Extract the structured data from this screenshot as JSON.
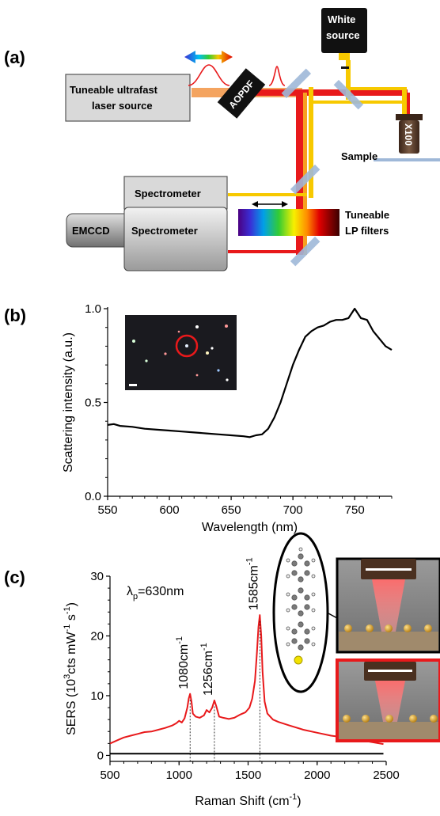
{
  "panel_a": {
    "label": "(a)",
    "laser_line1": "Tuneable ultrafast",
    "laser_line2": "laser source",
    "aopdf": "AOPDF",
    "white_line1": "White",
    "white_line2": "source",
    "objective": "X100",
    "sample": "Sample",
    "spectrometer_top": "Spectrometer",
    "spectrometer_bottom": "Spectrometer",
    "emccd": "EMCCD",
    "filters_line1": "Tuneable",
    "filters_line2": "LP filters"
  },
  "panel_b": {
    "label": "(b)"
  },
  "panel_c": {
    "label": "(c)",
    "lambda_symbol": "λ",
    "lambda_sub": "p",
    "lambda_value": "=630nm",
    "peaks": [
      {
        "text": "1080cm",
        "sup": "-1",
        "x": 1080
      },
      {
        "text": "1256cm",
        "sup": "-1",
        "x": 1256
      },
      {
        "text": "1585cm",
        "sup": "-1",
        "x": 1585
      }
    ]
  },
  "chart_data": [
    {
      "type": "line",
      "xlabel": "Wavelength (nm)",
      "ylabel": "Scattering intensity (a.u.)",
      "xlim": [
        550,
        780
      ],
      "ylim": [
        0.0,
        1.0
      ],
      "xticks": [
        "550",
        "600",
        "650",
        "700",
        "750"
      ],
      "yticks": [
        "0.0",
        "0.5",
        "1.0"
      ],
      "series": [
        {
          "color": "#000000",
          "x": [
            550,
            555,
            560,
            570,
            580,
            590,
            600,
            610,
            620,
            630,
            640,
            650,
            660,
            665,
            670,
            675,
            680,
            685,
            690,
            695,
            700,
            705,
            710,
            715,
            720,
            725,
            730,
            735,
            740,
            745,
            750,
            755,
            760,
            765,
            770,
            775,
            780
          ],
          "y": [
            0.38,
            0.385,
            0.375,
            0.37,
            0.36,
            0.355,
            0.35,
            0.345,
            0.34,
            0.335,
            0.33,
            0.325,
            0.32,
            0.315,
            0.325,
            0.33,
            0.36,
            0.42,
            0.5,
            0.6,
            0.7,
            0.78,
            0.85,
            0.88,
            0.9,
            0.91,
            0.93,
            0.94,
            0.94,
            0.95,
            1.0,
            0.95,
            0.94,
            0.88,
            0.84,
            0.8,
            0.78
          ]
        }
      ]
    },
    {
      "type": "line",
      "xlabel": "Raman Shift (cm-1)",
      "ylabel": "SERS (10^3 cts mW-1 s-1)",
      "xlim": [
        500,
        2500
      ],
      "ylim": [
        -1,
        30
      ],
      "xticks": [
        "500",
        "1000",
        "1500",
        "2000",
        "2500"
      ],
      "yticks": [
        "0",
        "10",
        "20",
        "30"
      ],
      "series": [
        {
          "color": "#e8191b",
          "x": [
            500,
            550,
            600,
            650,
            700,
            750,
            800,
            850,
            900,
            950,
            980,
            1000,
            1020,
            1040,
            1060,
            1070,
            1080,
            1090,
            1100,
            1120,
            1150,
            1180,
            1200,
            1220,
            1240,
            1256,
            1270,
            1290,
            1320,
            1360,
            1400,
            1440,
            1480,
            1510,
            1530,
            1550,
            1565,
            1575,
            1585,
            1595,
            1605,
            1620,
            1640,
            1680,
            1720,
            1800,
            1900,
            2000,
            2100,
            2200,
            2300,
            2400,
            2480
          ],
          "y": [
            2.0,
            2.5,
            3.0,
            3.3,
            3.6,
            3.9,
            4.0,
            4.3,
            4.6,
            5.0,
            5.4,
            5.8,
            5.5,
            6.2,
            8.0,
            9.5,
            10.3,
            9.0,
            7.0,
            6.5,
            6.3,
            6.7,
            7.6,
            7.2,
            8.0,
            9.2,
            8.2,
            6.5,
            6.3,
            6.1,
            6.3,
            6.8,
            7.2,
            8.0,
            9.5,
            12.5,
            17.5,
            21.5,
            23.5,
            20.0,
            14.0,
            9.0,
            7.0,
            6.0,
            5.6,
            5.0,
            4.3,
            3.8,
            3.3,
            3.0,
            2.6,
            2.2,
            1.9
          ]
        },
        {
          "color": "#000000",
          "x": [
            500,
            700,
            900,
            1100,
            1300,
            1500,
            1700,
            1900,
            2100,
            2300,
            2480
          ],
          "y": [
            0.3,
            0.3,
            0.3,
            0.3,
            0.3,
            0.3,
            0.3,
            0.3,
            0.3,
            0.3,
            0.3
          ]
        }
      ]
    }
  ],
  "colors": {
    "laser_red": "#e8191b",
    "white_yellow": "#f7c900",
    "laser_orange": "#f4a460",
    "mirror": "#9fb8d8",
    "box_gray": "#d9d9d9",
    "red_box": "#e8191b"
  }
}
